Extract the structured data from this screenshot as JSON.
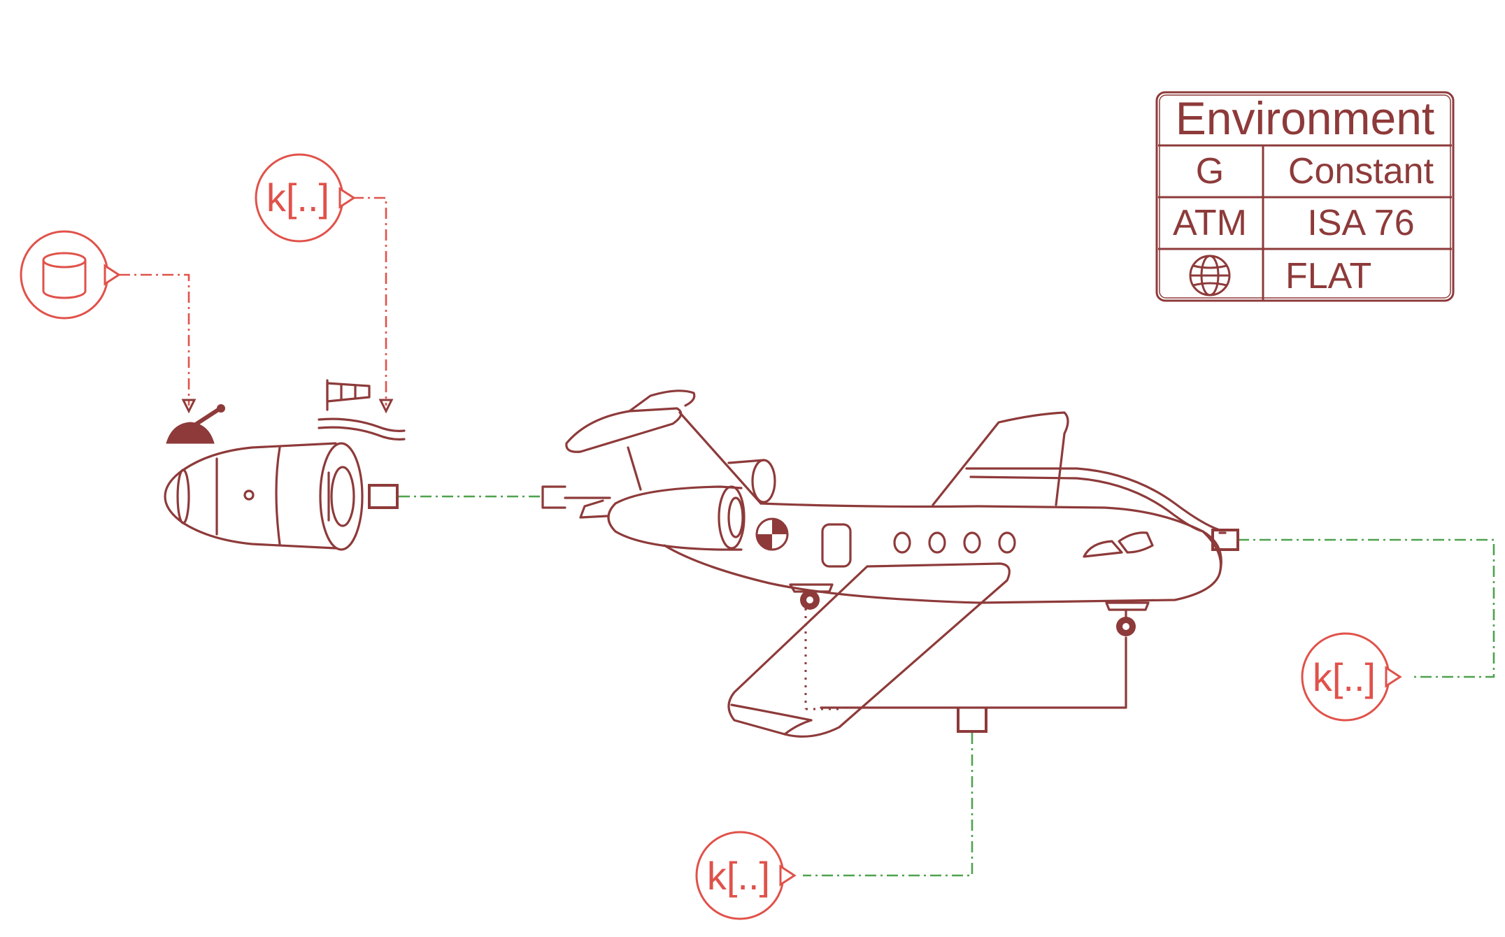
{
  "environment": {
    "title": "Environment",
    "rows": [
      {
        "key": "G",
        "value": "Constant"
      },
      {
        "key": "ATM",
        "value": "ISA 76"
      },
      {
        "key_icon": "globe-icon",
        "value": "FLAT"
      }
    ]
  },
  "sources": {
    "database_icon": "database-icon",
    "wind_gain_label": "k[..]",
    "aircraft_tail_gain_label": "k[..]",
    "aircraft_gear_gain_label": "k[..]"
  },
  "blocks": {
    "throttle_icon": "throttle-lever-icon",
    "windsock_icon": "windsock-icon",
    "engine_icon": "turbofan-engine-icon",
    "aircraft_icon": "business-jet-icon"
  },
  "colors": {
    "block_stroke": "#8e3a3a",
    "signal_wire": "#e0524a",
    "physical_wire": "#4fa24f"
  }
}
